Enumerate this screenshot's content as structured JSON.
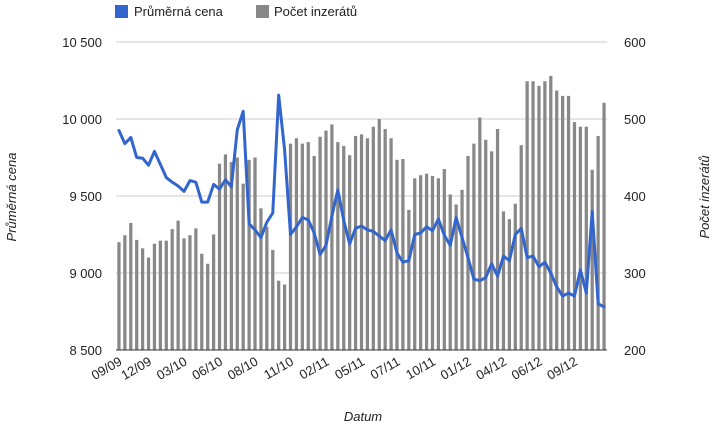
{
  "chart_data": {
    "type": "bar+line",
    "legend": {
      "position": "top-left",
      "items": [
        {
          "key": "avg_price",
          "label": "Průměrná cena",
          "color": "#3366cc",
          "shape": "line"
        },
        {
          "key": "listings",
          "label": "Počet inzerátů",
          "color": "#888888",
          "shape": "bar"
        }
      ]
    },
    "xlabel": "Datum",
    "y_left": {
      "label": "Průměrná cena",
      "min": 8500,
      "max": 10500,
      "ticks": [
        8500,
        9000,
        9500,
        10000,
        10500
      ],
      "tick_labels": [
        "8 500",
        "9 000",
        "9 500",
        "10 000",
        "10 500"
      ]
    },
    "y_right": {
      "label": "Počet inzerátů",
      "min": 200,
      "max": 600,
      "ticks": [
        200,
        300,
        400,
        500,
        600
      ],
      "tick_labels": [
        "200",
        "300",
        "400",
        "500",
        "600"
      ]
    },
    "grid": true,
    "x_labels": [
      {
        "index": 0,
        "label": "09/09"
      },
      {
        "index": 5,
        "label": "12/09"
      },
      {
        "index": 11,
        "label": "03/10"
      },
      {
        "index": 17,
        "label": "06/10"
      },
      {
        "index": 23,
        "label": "08/10"
      },
      {
        "index": 29,
        "label": "11/10"
      },
      {
        "index": 35,
        "label": "02/11"
      },
      {
        "index": 41,
        "label": "05/11"
      },
      {
        "index": 47,
        "label": "07/11"
      },
      {
        "index": 53,
        "label": "10/11"
      },
      {
        "index": 59,
        "label": "01/12"
      },
      {
        "index": 65,
        "label": "04/12"
      },
      {
        "index": 71,
        "label": "06/12"
      },
      {
        "index": 77,
        "label": "09/12"
      }
    ],
    "series": [
      {
        "name": "Počet inzerátů",
        "type": "bar",
        "axis": "right",
        "color": "#888888",
        "values": [
          340,
          349,
          365,
          343,
          332,
          320,
          338,
          342,
          342,
          357,
          368,
          345,
          349,
          358,
          325,
          312,
          350,
          442,
          454,
          444,
          450,
          416,
          447,
          450,
          384,
          360,
          330,
          290,
          285,
          468,
          475,
          468,
          470,
          452,
          477,
          485,
          493,
          470,
          465,
          453,
          478,
          480,
          475,
          490,
          500,
          487,
          475,
          447,
          448,
          382,
          423,
          427,
          429,
          426,
          423,
          435,
          402,
          389,
          408,
          452,
          468,
          502,
          473,
          458,
          487,
          380,
          370,
          390,
          466,
          549,
          549,
          543,
          549,
          556,
          537,
          530,
          530,
          496,
          490,
          490,
          434,
          478,
          521
        ]
      },
      {
        "name": "Průměrná cena",
        "type": "line",
        "axis": "left",
        "color": "#3366cc",
        "values": [
          9925,
          9840,
          9880,
          9750,
          9745,
          9700,
          9790,
          9705,
          9620,
          9590,
          9565,
          9530,
          9600,
          9590,
          9460,
          9460,
          9575,
          9545,
          9605,
          9560,
          9930,
          10050,
          9320,
          9280,
          9230,
          9330,
          9390,
          10155,
          9800,
          9250,
          9300,
          9360,
          9345,
          9260,
          9120,
          9180,
          9370,
          9540,
          9340,
          9190,
          9290,
          9305,
          9280,
          9270,
          9240,
          9210,
          9280,
          9130,
          9070,
          9080,
          9250,
          9260,
          9300,
          9275,
          9350,
          9245,
          9180,
          9360,
          9230,
          9100,
          8960,
          8950,
          8970,
          9060,
          8980,
          9110,
          9080,
          9250,
          9290,
          9100,
          9110,
          9040,
          9070,
          9000,
          8910,
          8850,
          8870,
          8850,
          9020,
          8870,
          9400,
          8800,
          8780
        ]
      }
    ]
  }
}
